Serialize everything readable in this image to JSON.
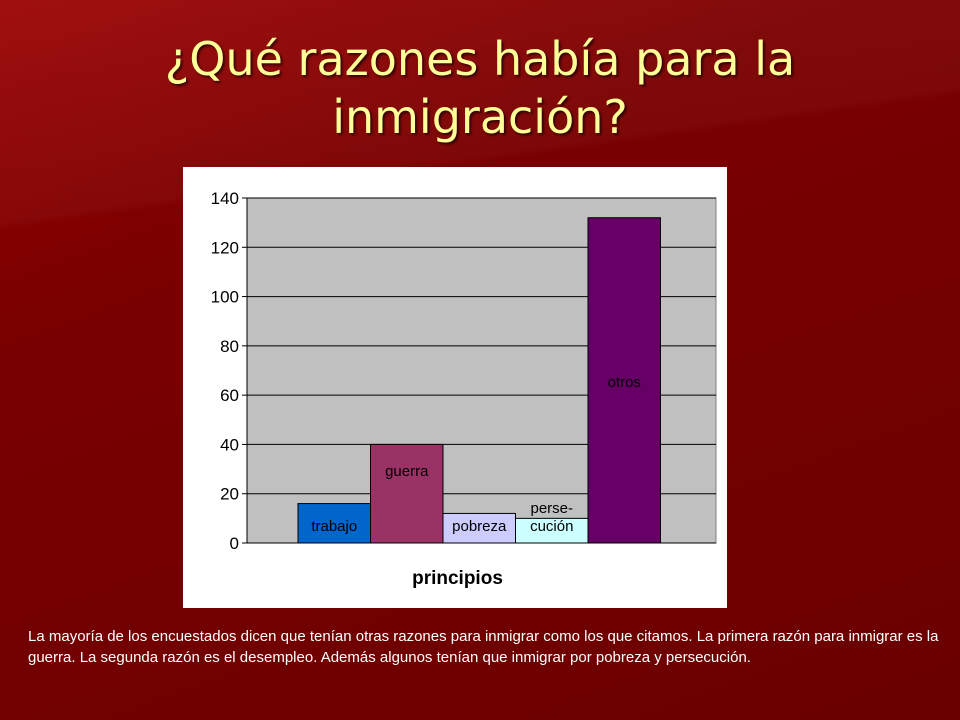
{
  "slide": {
    "title_line1": "¿Qué razones había para la",
    "title_line2": "inmigración?",
    "caption": "La mayoría  de los encuestados dicen que tenían otras razones para inmigrar como los que citamos. La primera razón para inmigrar es la guerra. La segunda razón es el desempleo. Además algunos tenían que inmigrar por pobreza y persecución.",
    "colors": {
      "title": "#ffff99",
      "background": "#7a0000",
      "plot_area": "#c0c0c0"
    }
  },
  "chart_data": {
    "type": "bar",
    "xlabel": "principios",
    "ylabel": "",
    "ylim": [
      0,
      140
    ],
    "yticks": [
      0,
      20,
      40,
      60,
      80,
      100,
      120,
      140
    ],
    "grid": true,
    "bars": [
      {
        "label_lines": [
          "trabajo"
        ],
        "value": 16,
        "color": "#0066cc"
      },
      {
        "label_lines": [
          "guerra"
        ],
        "value": 40,
        "color": "#993366"
      },
      {
        "label_lines": [
          "pobreza"
        ],
        "value": 12,
        "color": "#ccccff"
      },
      {
        "label_lines": [
          "perse-",
          "cución"
        ],
        "value": 10,
        "color": "#ccffff"
      },
      {
        "label_lines": [
          "otros"
        ],
        "value": 132,
        "color": "#660066"
      }
    ]
  }
}
